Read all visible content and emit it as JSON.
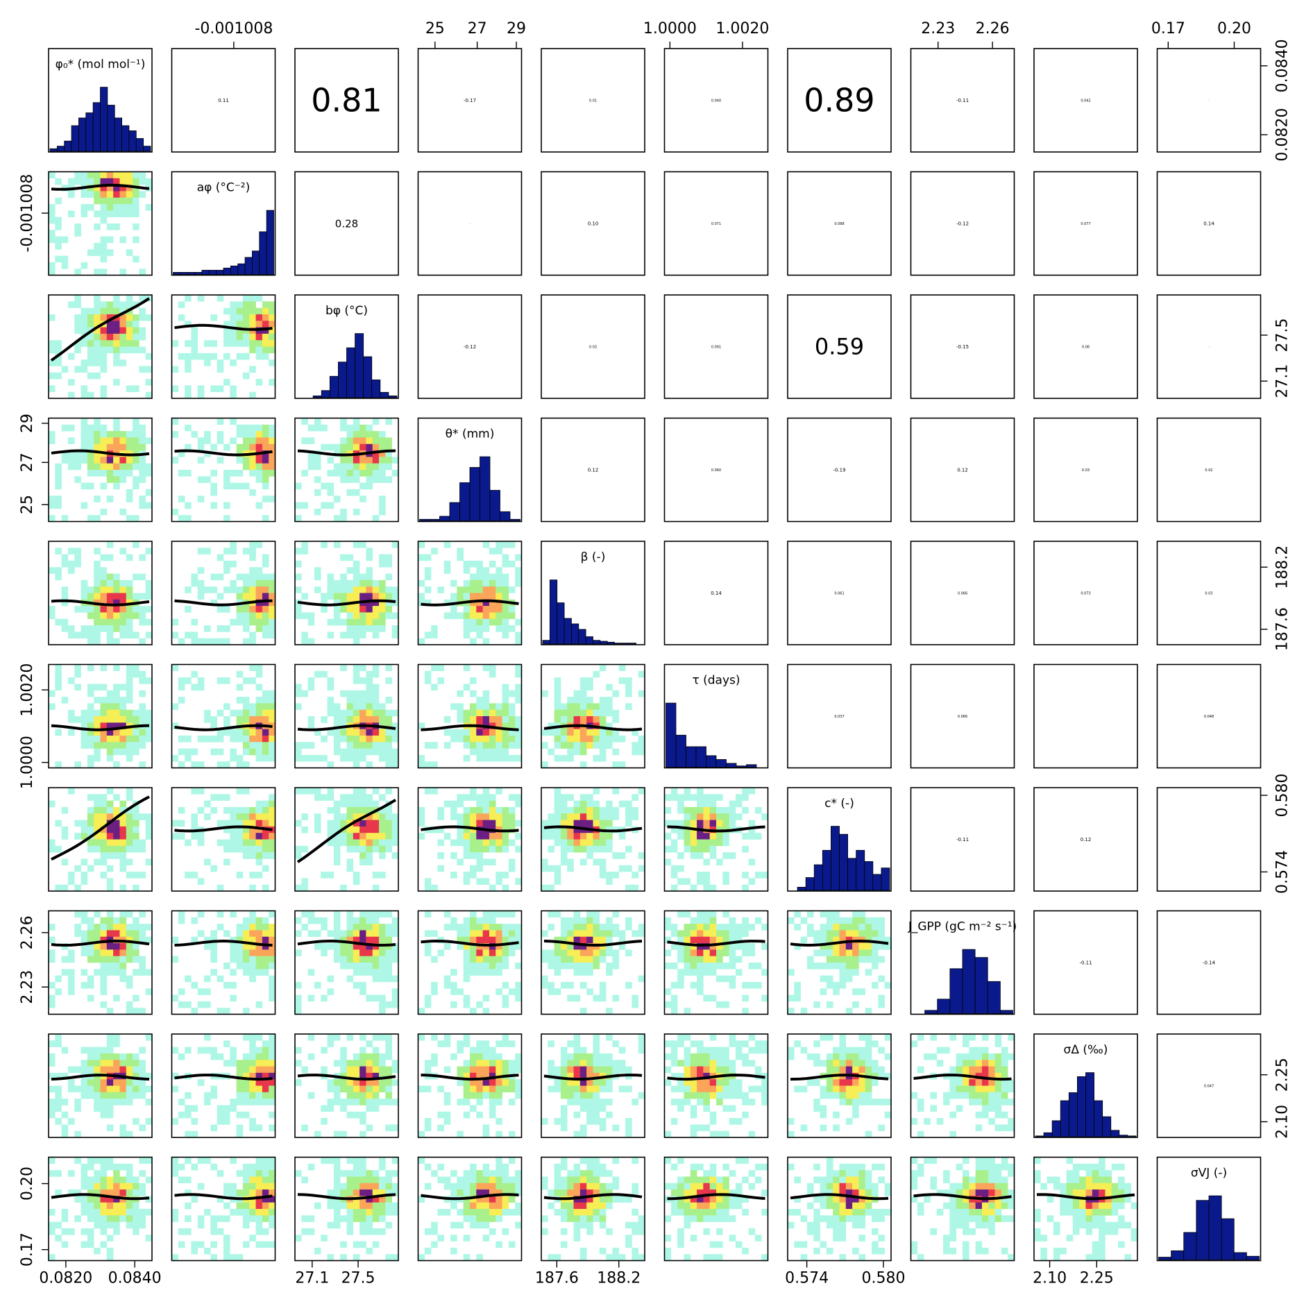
{
  "chart_data": {
    "type": "pairs",
    "n": 10,
    "variables": [
      {
        "key": "phi0",
        "label": "φ₀* (mol mol⁻¹)",
        "range": [
          0.0815,
          0.0845
        ],
        "ticks": [
          "0.0820",
          "0.0840"
        ],
        "tick_values": [
          0.082,
          0.084
        ],
        "mode": 0.083,
        "spread": 0.00055,
        "skew": 0
      },
      {
        "key": "a_phi",
        "label": "aφ (°C⁻²)",
        "range": [
          -0.00102,
          -0.001
        ],
        "ticks": [
          "-0.001008"
        ],
        "tick_values": [
          -0.001008
        ],
        "mode": -0.0010005,
        "spread": 2.5e-06,
        "skew": -1
      },
      {
        "key": "b_phi",
        "label": "bφ (°C)",
        "range": [
          26.95,
          27.85
        ],
        "ticks": [
          "27.1",
          "27.5"
        ],
        "tick_values": [
          27.1,
          27.5
        ],
        "mode": 27.5,
        "spread": 0.08,
        "skew": 0
      },
      {
        "key": "theta",
        "label": "θ* (mm)",
        "range": [
          24.2,
          29.1
        ],
        "ticks": [
          "25",
          "27",
          "29"
        ],
        "tick_values": [
          25,
          27,
          29
        ],
        "mode": 27.0,
        "spread": 0.8,
        "skew": 0
      },
      {
        "key": "beta",
        "label": "β (-)",
        "range": [
          187.45,
          188.45
        ],
        "ticks": [
          "187.6",
          "188.2"
        ],
        "tick_values": [
          187.6,
          188.2
        ],
        "mode": 187.55,
        "spread": 0.08,
        "skew": 1
      },
      {
        "key": "tau",
        "label": "τ (days)",
        "range": [
          0.99985,
          1.0027
        ],
        "ticks": [
          "1.0000",
          "1.0020"
        ],
        "tick_values": [
          1.0,
          1.002
        ],
        "mode": 1.00005,
        "spread": 0.00025,
        "skew": 1
      },
      {
        "key": "c",
        "label": "c* (-)",
        "range": [
          0.5725,
          0.5806
        ],
        "ticks": [
          "0.574",
          "0.580"
        ],
        "tick_values": [
          0.574,
          0.58
        ],
        "mode": 0.5762,
        "spread": 0.0011,
        "skew": 0
      },
      {
        "key": "J_GPP",
        "label": "J_GPP (gC m⁻² s⁻¹)",
        "range": [
          2.215,
          2.272
        ],
        "ticks": [
          "2.23",
          "2.26"
        ],
        "tick_values": [
          2.23,
          2.26
        ],
        "mode": 2.25,
        "spread": 0.0075,
        "skew": 0
      },
      {
        "key": "sigma_delta",
        "label": "σΔ (‰)",
        "range": [
          2.05,
          2.38
        ],
        "ticks": [
          "2.10",
          "2.25"
        ],
        "tick_values": [
          2.1,
          2.25
        ],
        "mode": 2.19,
        "spread": 0.045,
        "skew": 0
      },
      {
        "key": "sigma_vj",
        "label": "σVJ (-)",
        "range": [
          0.165,
          0.212
        ],
        "ticks": [
          "0.17",
          "0.20"
        ],
        "tick_values": [
          0.17,
          0.2
        ],
        "mode": 0.188,
        "spread": 0.0065,
        "skew": 0
      }
    ],
    "diagonal_histograms": [
      [
        1,
        2,
        4,
        10,
        13,
        15,
        19,
        25,
        18,
        13,
        10,
        8,
        5,
        2
      ],
      [
        1,
        1,
        1,
        1,
        2,
        2,
        2,
        3,
        4,
        5,
        8,
        11,
        20,
        30
      ],
      [
        0,
        0,
        1,
        4,
        12,
        20,
        28,
        36,
        23,
        10,
        3,
        1
      ],
      [
        1,
        1,
        3,
        12,
        25,
        35,
        42,
        20,
        6,
        1
      ],
      [
        4,
        70,
        45,
        28,
        22,
        16,
        8,
        4,
        3,
        2,
        1,
        1,
        1,
        0
      ],
      [
        50,
        25,
        16,
        16,
        9,
        6,
        3,
        1,
        2,
        0
      ],
      [
        0,
        2,
        8,
        16,
        25,
        40,
        35,
        20,
        25,
        18,
        10,
        14
      ],
      [
        0,
        2,
        9,
        28,
        40,
        35,
        20,
        2
      ],
      [
        1,
        5,
        20,
        45,
        55,
        75,
        80,
        45,
        25,
        8,
        2,
        1
      ],
      [
        3,
        10,
        30,
        65,
        70,
        45,
        8,
        4
      ]
    ],
    "correlation_labels": [
      {
        "row": 1,
        "col": 2,
        "text": "0.11"
      },
      {
        "row": 1,
        "col": 3,
        "text": "0.81"
      },
      {
        "row": 1,
        "col": 4,
        "text": "-0.17"
      },
      {
        "row": 1,
        "col": 5,
        "text": "0.01"
      },
      {
        "row": 1,
        "col": 6,
        "text": "0.040"
      },
      {
        "row": 1,
        "col": 7,
        "text": "0.89"
      },
      {
        "row": 1,
        "col": 8,
        "text": "-0.11"
      },
      {
        "row": 1,
        "col": 9,
        "text": "0.042"
      },
      {
        "row": 1,
        "col": 10,
        "text": "·"
      },
      {
        "row": 2,
        "col": 3,
        "text": "0.28"
      },
      {
        "row": 2,
        "col": 4,
        "text": "·"
      },
      {
        "row": 2,
        "col": 5,
        "text": "0.10"
      },
      {
        "row": 2,
        "col": 6,
        "text": "0.071"
      },
      {
        "row": 2,
        "col": 7,
        "text": "0.088"
      },
      {
        "row": 2,
        "col": 8,
        "text": "-0.12"
      },
      {
        "row": 2,
        "col": 9,
        "text": "0.077"
      },
      {
        "row": 2,
        "col": 10,
        "text": "0.14"
      },
      {
        "row": 3,
        "col": 4,
        "text": "-0.12"
      },
      {
        "row": 3,
        "col": 5,
        "text": "0.03"
      },
      {
        "row": 3,
        "col": 6,
        "text": "0.091"
      },
      {
        "row": 3,
        "col": 7,
        "text": "0.59"
      },
      {
        "row": 3,
        "col": 8,
        "text": "-0.15"
      },
      {
        "row": 3,
        "col": 9,
        "text": "0.06"
      },
      {
        "row": 3,
        "col": 10,
        "text": "·"
      },
      {
        "row": 4,
        "col": 5,
        "text": "0.12"
      },
      {
        "row": 4,
        "col": 6,
        "text": "0.060"
      },
      {
        "row": 4,
        "col": 7,
        "text": "-0.19"
      },
      {
        "row": 4,
        "col": 8,
        "text": "0.12"
      },
      {
        "row": 4,
        "col": 9,
        "text": "0.03"
      },
      {
        "row": 4,
        "col": 10,
        "text": "0.02"
      },
      {
        "row": 5,
        "col": 6,
        "text": "0.14"
      },
      {
        "row": 5,
        "col": 7,
        "text": "0.061"
      },
      {
        "row": 5,
        "col": 8,
        "text": "0.066"
      },
      {
        "row": 5,
        "col": 9,
        "text": "0.073"
      },
      {
        "row": 5,
        "col": 10,
        "text": "0.03"
      },
      {
        "row": 6,
        "col": 7,
        "text": "0.037"
      },
      {
        "row": 6,
        "col": 8,
        "text": "0.066"
      },
      {
        "row": 6,
        "col": 10,
        "text": "0.048"
      },
      {
        "row": 7,
        "col": 8,
        "text": "-0.11"
      },
      {
        "row": 7,
        "col": 9,
        "text": "0.12"
      },
      {
        "row": 8,
        "col": 9,
        "text": "-0.11"
      },
      {
        "row": 8,
        "col": 10,
        "text": "-0.14"
      },
      {
        "row": 9,
        "col": 10,
        "text": "0.047"
      }
    ],
    "big_labels": [
      "0.81",
      "0.89",
      "0.59"
    ],
    "lower_panels": "2D histogram heatmap (turquoise→green→yellow→orange→red→purple by density) with black smoother line",
    "colors": {
      "histogram_fill": "#0a1a8c",
      "heat_low": "#aef7e6",
      "heat_mid": "#a8f08c",
      "heat_yellow": "#f7ee55",
      "heat_orange": "#fba55a",
      "heat_red": "#e8364b",
      "heat_max": "#6b1f82",
      "smoother": "#000000"
    }
  }
}
